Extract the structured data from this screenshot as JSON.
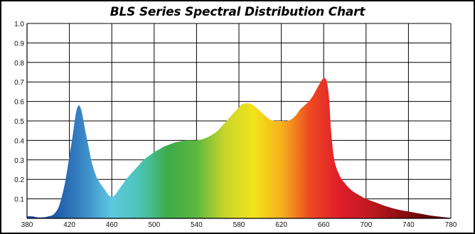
{
  "chart_data": {
    "type": "area",
    "title": "BLS Series Spectral Distribution Chart",
    "xlabel": "",
    "ylabel": "",
    "xlim": [
      380,
      780
    ],
    "ylim": [
      0,
      1.0
    ],
    "x_ticks": [
      "380",
      "420",
      "460",
      "500",
      "540",
      "580",
      "620",
      "660",
      "700",
      "740",
      "780"
    ],
    "y_ticks": [
      "0.1",
      "0.2",
      "0.3",
      "0.4",
      "0.5",
      "0.6",
      "0.7",
      "0.8",
      "0.9",
      "1.0"
    ],
    "grid": true,
    "legend": "none",
    "fill": "spectral-rainbow",
    "series": [
      {
        "x": [
          380,
          385,
          390,
          395,
          400,
          405,
          410,
          415,
          418,
          420,
          423,
          425,
          427,
          429,
          431,
          433,
          435,
          438,
          441,
          445,
          449,
          453,
          457,
          460,
          463,
          467,
          471,
          475,
          480,
          485,
          490,
          495,
          500,
          505,
          510,
          515,
          520,
          525,
          530,
          535,
          540,
          545,
          550,
          555,
          560,
          565,
          570,
          575,
          580,
          583,
          586,
          589,
          592,
          595,
          598,
          602,
          606,
          610,
          614,
          618,
          622,
          626,
          630,
          634,
          638,
          642,
          646,
          650,
          653,
          656,
          659,
          661,
          663,
          665,
          667,
          670,
          675,
          680,
          685,
          690,
          700,
          710,
          720,
          730,
          740,
          750,
          760,
          770,
          780
        ],
        "y": [
          0.01,
          0.01,
          0.005,
          0.005,
          0.01,
          0.02,
          0.06,
          0.16,
          0.25,
          0.32,
          0.42,
          0.5,
          0.56,
          0.58,
          0.56,
          0.51,
          0.45,
          0.37,
          0.29,
          0.22,
          0.18,
          0.15,
          0.12,
          0.11,
          0.12,
          0.15,
          0.18,
          0.21,
          0.24,
          0.27,
          0.3,
          0.32,
          0.34,
          0.355,
          0.37,
          0.38,
          0.39,
          0.395,
          0.4,
          0.4,
          0.4,
          0.405,
          0.415,
          0.43,
          0.45,
          0.48,
          0.51,
          0.54,
          0.57,
          0.585,
          0.59,
          0.59,
          0.585,
          0.575,
          0.56,
          0.54,
          0.52,
          0.505,
          0.5,
          0.5,
          0.5,
          0.5,
          0.51,
          0.53,
          0.56,
          0.58,
          0.6,
          0.63,
          0.66,
          0.69,
          0.715,
          0.72,
          0.7,
          0.62,
          0.45,
          0.3,
          0.22,
          0.18,
          0.15,
          0.13,
          0.1,
          0.08,
          0.06,
          0.045,
          0.035,
          0.025,
          0.015,
          0.008,
          0.002
        ]
      }
    ]
  },
  "colors": {
    "spectrum_stops": [
      "#1a3f8f",
      "#1f58a8",
      "#3a88c6",
      "#5ec8e0",
      "#4cc4b4",
      "#3dab48",
      "#5cb83e",
      "#c8d62a",
      "#f2e41a",
      "#f5b21c",
      "#ee4a22",
      "#e21e2a",
      "#c41a22",
      "#9a1014",
      "#6a0808",
      "#4a0404"
    ],
    "grid": "#000000",
    "background": "#ffffff"
  }
}
